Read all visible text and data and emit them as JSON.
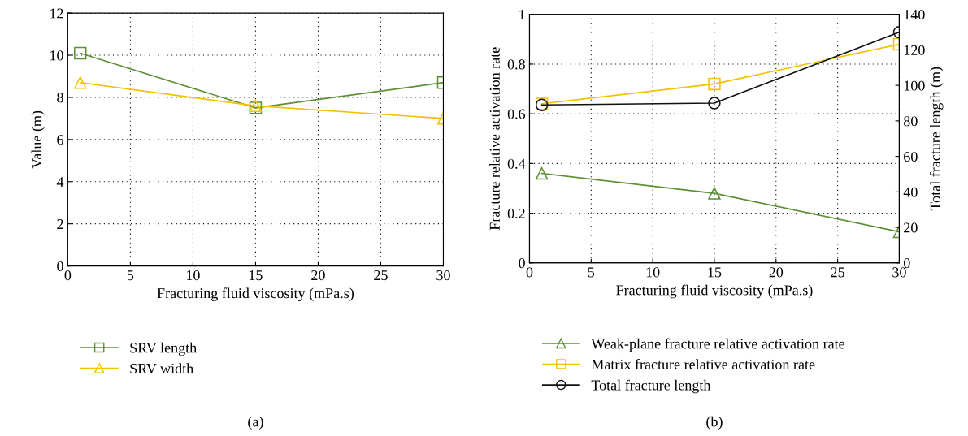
{
  "chart_data": [
    {
      "type": "line",
      "xlabel": "Fracturing fluid viscosity (mPa.s)",
      "ylabel": "Value (m)",
      "x": [
        1,
        15,
        30
      ],
      "xlim": [
        0,
        30
      ],
      "xticks": [
        0,
        5,
        10,
        15,
        20,
        25,
        30
      ],
      "ylim": [
        0,
        12
      ],
      "yticks": [
        0,
        2,
        4,
        6,
        8,
        10,
        12
      ],
      "grid": true,
      "legend": "bottom",
      "annotations": [
        "(a)"
      ],
      "series": [
        {
          "name": "SRV length",
          "color": "#5b9033",
          "marker": "square",
          "values": [
            10.1,
            7.5,
            8.7
          ]
        },
        {
          "name": "SRV width",
          "color": "#f5c000",
          "marker": "triangle",
          "values": [
            8.7,
            7.6,
            7.0
          ]
        }
      ]
    },
    {
      "type": "line",
      "xlabel": "Fracturing fluid viscosity (mPa.s)",
      "ylabel": "Fracture relative activation rate",
      "y2label": "Total fracture length (m)",
      "x": [
        1,
        15,
        30
      ],
      "xlim": [
        0,
        30
      ],
      "xticks": [
        0,
        5,
        10,
        15,
        20,
        25,
        30
      ],
      "ylim": [
        0,
        1
      ],
      "yticks": [
        0,
        0.2,
        0.4,
        0.6,
        0.8,
        1
      ],
      "y2lim": [
        0,
        140
      ],
      "y2ticks": [
        0,
        20,
        40,
        60,
        80,
        100,
        120,
        140
      ],
      "grid": true,
      "legend": "bottom",
      "annotations": [
        "(b)"
      ],
      "series": [
        {
          "name": "Weak-plane fracture relative activation rate",
          "color": "#5b9033",
          "marker": "triangle",
          "values": [
            0.36,
            0.28,
            0.125
          ]
        },
        {
          "name": "Matrix fracture relative activation rate",
          "color": "#f5c000",
          "marker": "square",
          "values": [
            0.64,
            0.72,
            0.88
          ]
        },
        {
          "name": "Total fracture length",
          "color": "#111111",
          "marker": "circle",
          "axis": "y2",
          "values": [
            89,
            90,
            130
          ]
        }
      ]
    }
  ]
}
